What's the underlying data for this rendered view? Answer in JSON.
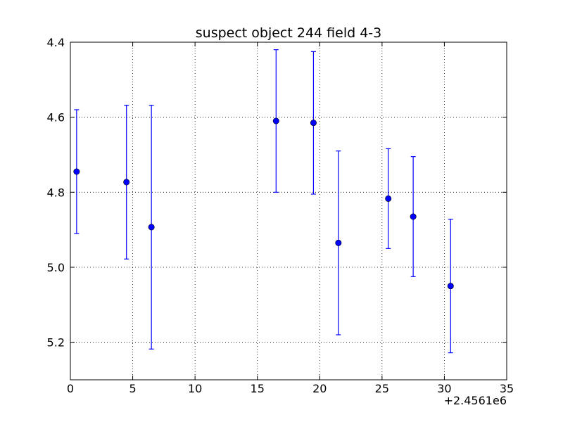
{
  "chart_data": {
    "type": "scatter",
    "title": "suspect object 244 field 4-3",
    "xlabel": "",
    "ylabel": "",
    "x_offset_label": "+2.4561e6",
    "xlim": [
      0,
      35
    ],
    "ylim": [
      5.3,
      4.4
    ],
    "y_inverted": true,
    "x_ticks": [
      0,
      5,
      10,
      15,
      20,
      25,
      30,
      35
    ],
    "x_tick_labels": [
      "0",
      "5",
      "10",
      "15",
      "20",
      "25",
      "30",
      "35"
    ],
    "y_ticks": [
      4.4,
      4.6,
      4.8,
      5.0,
      5.2
    ],
    "y_tick_labels": [
      "4.4",
      "4.6",
      "4.8",
      "5.0",
      "5.2"
    ],
    "grid": true,
    "marker_color": "#0000ff",
    "errorbar_color": "#0000ff",
    "points": [
      {
        "x": 0.5,
        "y": 4.745,
        "yerr": 0.165
      },
      {
        "x": 4.5,
        "y": 4.773,
        "yerr": 0.205
      },
      {
        "x": 6.5,
        "y": 4.893,
        "yerr": 0.325
      },
      {
        "x": 16.5,
        "y": 4.61,
        "yerr": 0.19
      },
      {
        "x": 19.5,
        "y": 4.615,
        "yerr": 0.19
      },
      {
        "x": 21.5,
        "y": 4.935,
        "yerr": 0.245
      },
      {
        "x": 25.5,
        "y": 4.817,
        "yerr": 0.133
      },
      {
        "x": 27.5,
        "y": 4.865,
        "yerr": 0.16
      },
      {
        "x": 30.5,
        "y": 5.05,
        "yerr": 0.178
      }
    ]
  }
}
